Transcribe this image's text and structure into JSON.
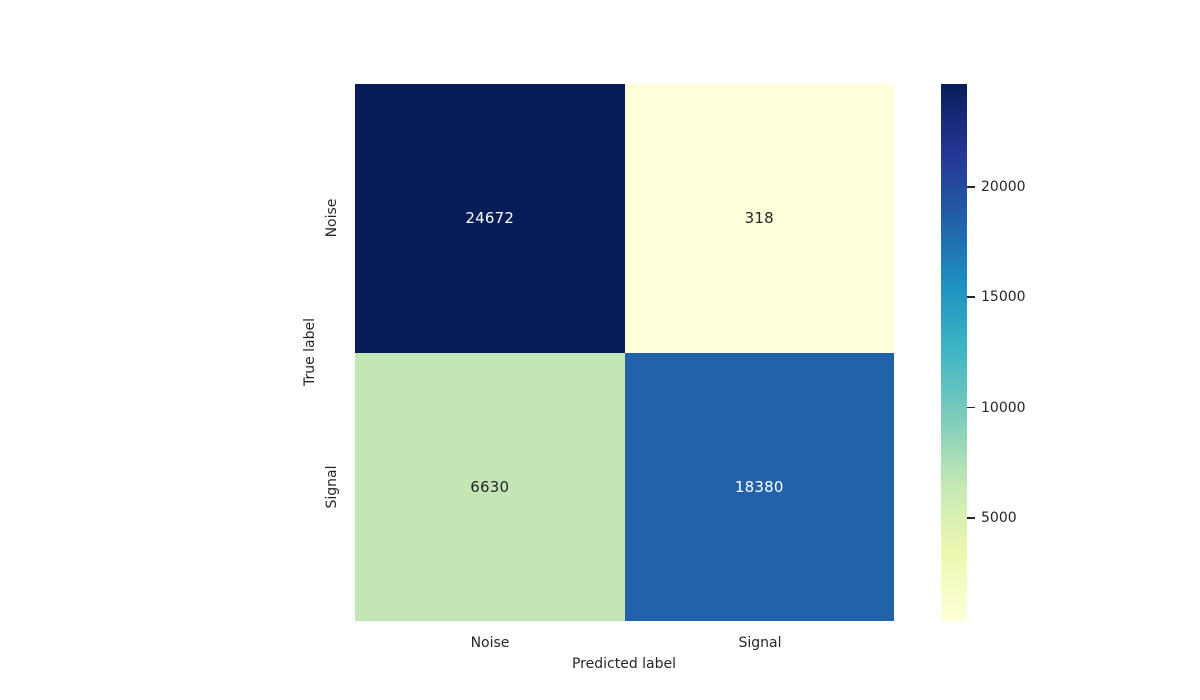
{
  "chart_data": {
    "type": "heatmap",
    "title": "",
    "x_categories": [
      "Noise",
      "Signal"
    ],
    "y_categories": [
      "Noise",
      "Signal"
    ],
    "values": [
      [
        24672,
        318
      ],
      [
        6630,
        18380
      ]
    ],
    "xlabel": "Predicted label",
    "ylabel": "True label",
    "vmin": 318,
    "vmax": 24672,
    "colormap": "YlGnBu_reversed_top_dark",
    "colorbar_ticks": [
      20000,
      15000,
      10000,
      5000
    ],
    "colormap_stops": [
      "#081d58",
      "#253494",
      "#225ea8",
      "#1d91c0",
      "#41b6c4",
      "#7fcdbb",
      "#c7e9b4",
      "#edf8b1",
      "#ffffd9"
    ],
    "cells": [
      {
        "row": "Noise",
        "col": "Noise",
        "value": "24672",
        "bg": "#081d58",
        "fg": "#ffffff"
      },
      {
        "row": "Noise",
        "col": "Signal",
        "value": "318",
        "bg": "#ffffd9",
        "fg": "#262626"
      },
      {
        "row": "Signal",
        "col": "Noise",
        "value": "6630",
        "bg": "#c3e7b4",
        "fg": "#262626"
      },
      {
        "row": "Signal",
        "col": "Signal",
        "value": "18380",
        "bg": "#2262aa",
        "fg": "#ffffff"
      }
    ],
    "text_color": "#262626",
    "background_color": "#ffffff"
  }
}
